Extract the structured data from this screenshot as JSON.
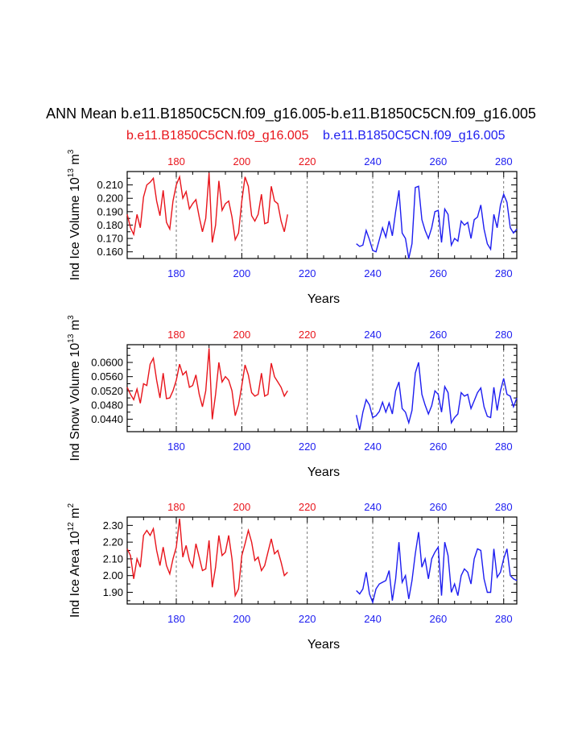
{
  "title": "ANN Mean b.e11.B1850C5CN.f09_g16.005-b.e11.B1850C5CN.f09_g16.005",
  "case_a": "b.e11.B1850C5CN.f09_g16.005",
  "case_b": "b.e11.B1850C5CN.f09_g16.005",
  "colors": {
    "case_a": "#e8141b",
    "case_b": "#1d1df0",
    "axis": "#000000",
    "grid": "#555555"
  },
  "chart_data": [
    {
      "type": "line",
      "ylabel_main": "Ind Ice Volume 10",
      "ylabel_exp": "13",
      "ylabel_unit": " m",
      "ylabel_unit_exp": "3",
      "xlabel": "Years",
      "xlim": [
        165,
        284
      ],
      "ylim": [
        0.155,
        0.22
      ],
      "yticks": [
        0.16,
        0.17,
        0.18,
        0.19,
        0.2,
        0.21
      ],
      "ytick_labels": [
        "0.160",
        "0.170",
        "0.180",
        "0.190",
        "0.200",
        "0.210"
      ],
      "xticks": [
        180,
        200,
        220,
        240,
        260,
        280
      ],
      "xtick_labels": [
        "180",
        "200",
        "220",
        "240",
        "260",
        "280"
      ],
      "top_tick_labels": [
        "180",
        "200",
        "220",
        "240",
        "260",
        "280"
      ],
      "bottom_tick_labels": [
        "180",
        "200",
        "220",
        "240",
        "260",
        "280"
      ],
      "series": [
        {
          "name": "case_a",
          "x_start": 165,
          "values": [
            0.188,
            0.178,
            0.173,
            0.188,
            0.178,
            0.201,
            0.21,
            0.212,
            0.215,
            0.198,
            0.187,
            0.206,
            0.182,
            0.177,
            0.198,
            0.21,
            0.216,
            0.2,
            0.205,
            0.192,
            0.196,
            0.199,
            0.186,
            0.175,
            0.185,
            0.219,
            0.167,
            0.18,
            0.213,
            0.191,
            0.196,
            0.198,
            0.186,
            0.169,
            0.174,
            0.198,
            0.216,
            0.209,
            0.187,
            0.183,
            0.188,
            0.203,
            0.181,
            0.182,
            0.209,
            0.198,
            0.196,
            0.183,
            0.175,
            0.188
          ]
        },
        {
          "name": "case_b",
          "x_start": 235,
          "values": [
            0.166,
            0.164,
            0.165,
            0.176,
            0.169,
            0.161,
            0.16,
            0.169,
            0.178,
            0.171,
            0.183,
            0.172,
            0.19,
            0.206,
            0.174,
            0.17,
            0.155,
            0.166,
            0.208,
            0.209,
            0.184,
            0.176,
            0.17,
            0.178,
            0.19,
            0.191,
            0.167,
            0.192,
            0.188,
            0.165,
            0.17,
            0.168,
            0.183,
            0.18,
            0.182,
            0.17,
            0.184,
            0.186,
            0.195,
            0.177,
            0.166,
            0.162,
            0.188,
            0.178,
            0.195,
            0.203,
            0.197,
            0.178,
            0.174,
            0.177
          ]
        }
      ]
    },
    {
      "type": "line",
      "ylabel_main": "Ind Snow Volume 10",
      "ylabel_exp": "13",
      "ylabel_unit": " m",
      "ylabel_unit_exp": "3",
      "xlabel": "Years",
      "xlim": [
        165,
        284
      ],
      "ylim": [
        0.0405,
        0.065
      ],
      "yticks": [
        0.044,
        0.048,
        0.052,
        0.056,
        0.06
      ],
      "ytick_labels": [
        "0.0440",
        "0.0480",
        "0.0520",
        "0.0560",
        "0.0600"
      ],
      "xticks": [
        180,
        200,
        220,
        240,
        260,
        280
      ],
      "xtick_labels": [
        "180",
        "200",
        "220",
        "240",
        "260",
        "280"
      ],
      "top_tick_labels": [
        "180",
        "200",
        "220",
        "240",
        "260",
        "280"
      ],
      "bottom_tick_labels": [
        "180",
        "200",
        "220",
        "240",
        "260",
        "280"
      ],
      "series": [
        {
          "name": "case_a",
          "x_start": 165,
          "values": [
            0.053,
            0.051,
            0.0495,
            0.0525,
            0.0485,
            0.054,
            0.0535,
            0.0595,
            0.0612,
            0.055,
            0.05,
            0.057,
            0.0498,
            0.05,
            0.052,
            0.055,
            0.0595,
            0.0565,
            0.0575,
            0.053,
            0.0535,
            0.0565,
            0.051,
            0.0475,
            0.052,
            0.064,
            0.044,
            0.051,
            0.06,
            0.0545,
            0.056,
            0.055,
            0.052,
            0.045,
            0.048,
            0.0535,
            0.0593,
            0.0565,
            0.0515,
            0.0505,
            0.051,
            0.057,
            0.0505,
            0.051,
            0.0598,
            0.056,
            0.0545,
            0.053,
            0.0505,
            0.052
          ]
        },
        {
          "name": "case_b",
          "x_start": 235,
          "values": [
            0.0452,
            0.041,
            0.046,
            0.0495,
            0.048,
            0.0445,
            0.045,
            0.0462,
            0.0488,
            0.046,
            0.0485,
            0.0455,
            0.052,
            0.0545,
            0.047,
            0.046,
            0.043,
            0.0465,
            0.057,
            0.06,
            0.051,
            0.048,
            0.0455,
            0.0478,
            0.052,
            0.051,
            0.046,
            0.0532,
            0.0515,
            0.043,
            0.0445,
            0.0455,
            0.0515,
            0.0505,
            0.051,
            0.047,
            0.0492,
            0.0515,
            0.0528,
            0.0475,
            0.0448,
            0.0445,
            0.053,
            0.0465,
            0.052,
            0.0555,
            0.051,
            0.0505,
            0.0475,
            0.05
          ]
        }
      ]
    },
    {
      "type": "line",
      "ylabel_main": "Ind Ice Area 10",
      "ylabel_exp": "12",
      "ylabel_unit": " m",
      "ylabel_unit_exp": "2",
      "xlabel": "Years",
      "xlim": [
        165,
        284
      ],
      "ylim": [
        1.83,
        2.35
      ],
      "yticks": [
        1.9,
        2.0,
        2.1,
        2.2,
        2.3
      ],
      "ytick_labels": [
        "1.90",
        "2.00",
        "2.10",
        "2.20",
        "2.30"
      ],
      "xticks": [
        180,
        200,
        220,
        240,
        260,
        280
      ],
      "xtick_labels": [
        "180",
        "200",
        "220",
        "240",
        "260",
        "280"
      ],
      "top_tick_labels": [
        "180",
        "200",
        "220",
        "240",
        "260",
        "280"
      ],
      "bottom_tick_labels": [
        "180",
        "200",
        "220",
        "240",
        "260",
        "280"
      ],
      "series": [
        {
          "name": "case_a",
          "x_start": 165,
          "values": [
            2.16,
            2.12,
            1.98,
            2.1,
            2.05,
            2.24,
            2.27,
            2.24,
            2.28,
            2.15,
            2.06,
            2.17,
            2.06,
            2.01,
            2.1,
            2.17,
            2.34,
            2.11,
            2.18,
            2.09,
            2.05,
            2.19,
            2.11,
            2.03,
            2.04,
            2.21,
            1.93,
            2.05,
            2.24,
            2.12,
            2.14,
            2.24,
            2.1,
            1.88,
            1.92,
            2.12,
            2.19,
            2.27,
            2.2,
            2.09,
            2.11,
            2.03,
            2.06,
            2.14,
            2.22,
            2.13,
            2.15,
            2.08,
            2.0,
            2.02
          ]
        },
        {
          "name": "case_b",
          "x_start": 235,
          "values": [
            1.91,
            1.89,
            1.92,
            2.02,
            1.89,
            1.84,
            1.92,
            1.95,
            1.96,
            1.97,
            2.03,
            1.85,
            1.98,
            2.2,
            1.96,
            2.0,
            1.86,
            1.97,
            2.13,
            2.26,
            2.05,
            2.1,
            1.98,
            2.1,
            2.14,
            2.17,
            1.88,
            2.2,
            2.12,
            1.9,
            1.95,
            1.88,
            2.0,
            2.04,
            2.02,
            1.95,
            2.1,
            2.16,
            2.15,
            1.98,
            1.9,
            1.9,
            2.16,
            1.99,
            2.02,
            2.1,
            2.16,
            2.0,
            1.98,
            1.97
          ]
        }
      ]
    }
  ]
}
